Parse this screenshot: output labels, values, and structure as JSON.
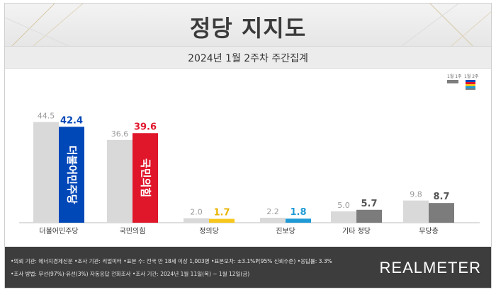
{
  "header": {
    "title": "정당 지지도",
    "subtitle": "2024년 1월 2주차 주간집계"
  },
  "legend": {
    "prev_label": "1월 1주",
    "curr_label": "1월 2주"
  },
  "chart_data": {
    "type": "bar",
    "categories": [
      "더불어민주당",
      "국민의힘",
      "정의당",
      "진보당",
      "기타 정당",
      "무당층"
    ],
    "series": [
      {
        "name": "1월 1주",
        "values": [
          44.5,
          36.6,
          2.0,
          2.2,
          5.0,
          9.8
        ]
      },
      {
        "name": "1월 2주",
        "values": [
          42.4,
          39.6,
          1.7,
          1.8,
          5.7,
          8.7
        ]
      }
    ],
    "bar_inner_text": [
      "더불어민주당",
      "국민의힘",
      "",
      "",
      "",
      ""
    ],
    "ylim": [
      0,
      50
    ],
    "colors": {
      "prev": "#d9d9d9",
      "curr": [
        "#0047b8",
        "#e0162b",
        "#f7c71b",
        "#1f9ad6",
        "#7c7c7c",
        "#7c7c7c"
      ],
      "curr_label": [
        "#0047b8",
        "#e0162b",
        "#e8b500",
        "#1f9ad6",
        "#555555",
        "#555555"
      ]
    },
    "grid": false
  },
  "footer": {
    "line1": "•의뢰 기관: 에너지경제신문 •조사 기관: 리얼미터 •표본 수: 전국 만 18세 이상 1,003명 •표본오차: ±3.1%P(95% 신뢰수준) •응답률: 3.3%",
    "line2": "•조사 방법: 무선(97%)·유선(3%) 자동응답 전화조사 •조사 기간: 2024년 1월 11일(목) ~ 1월 12일(금)",
    "logo": "REALMETER"
  }
}
